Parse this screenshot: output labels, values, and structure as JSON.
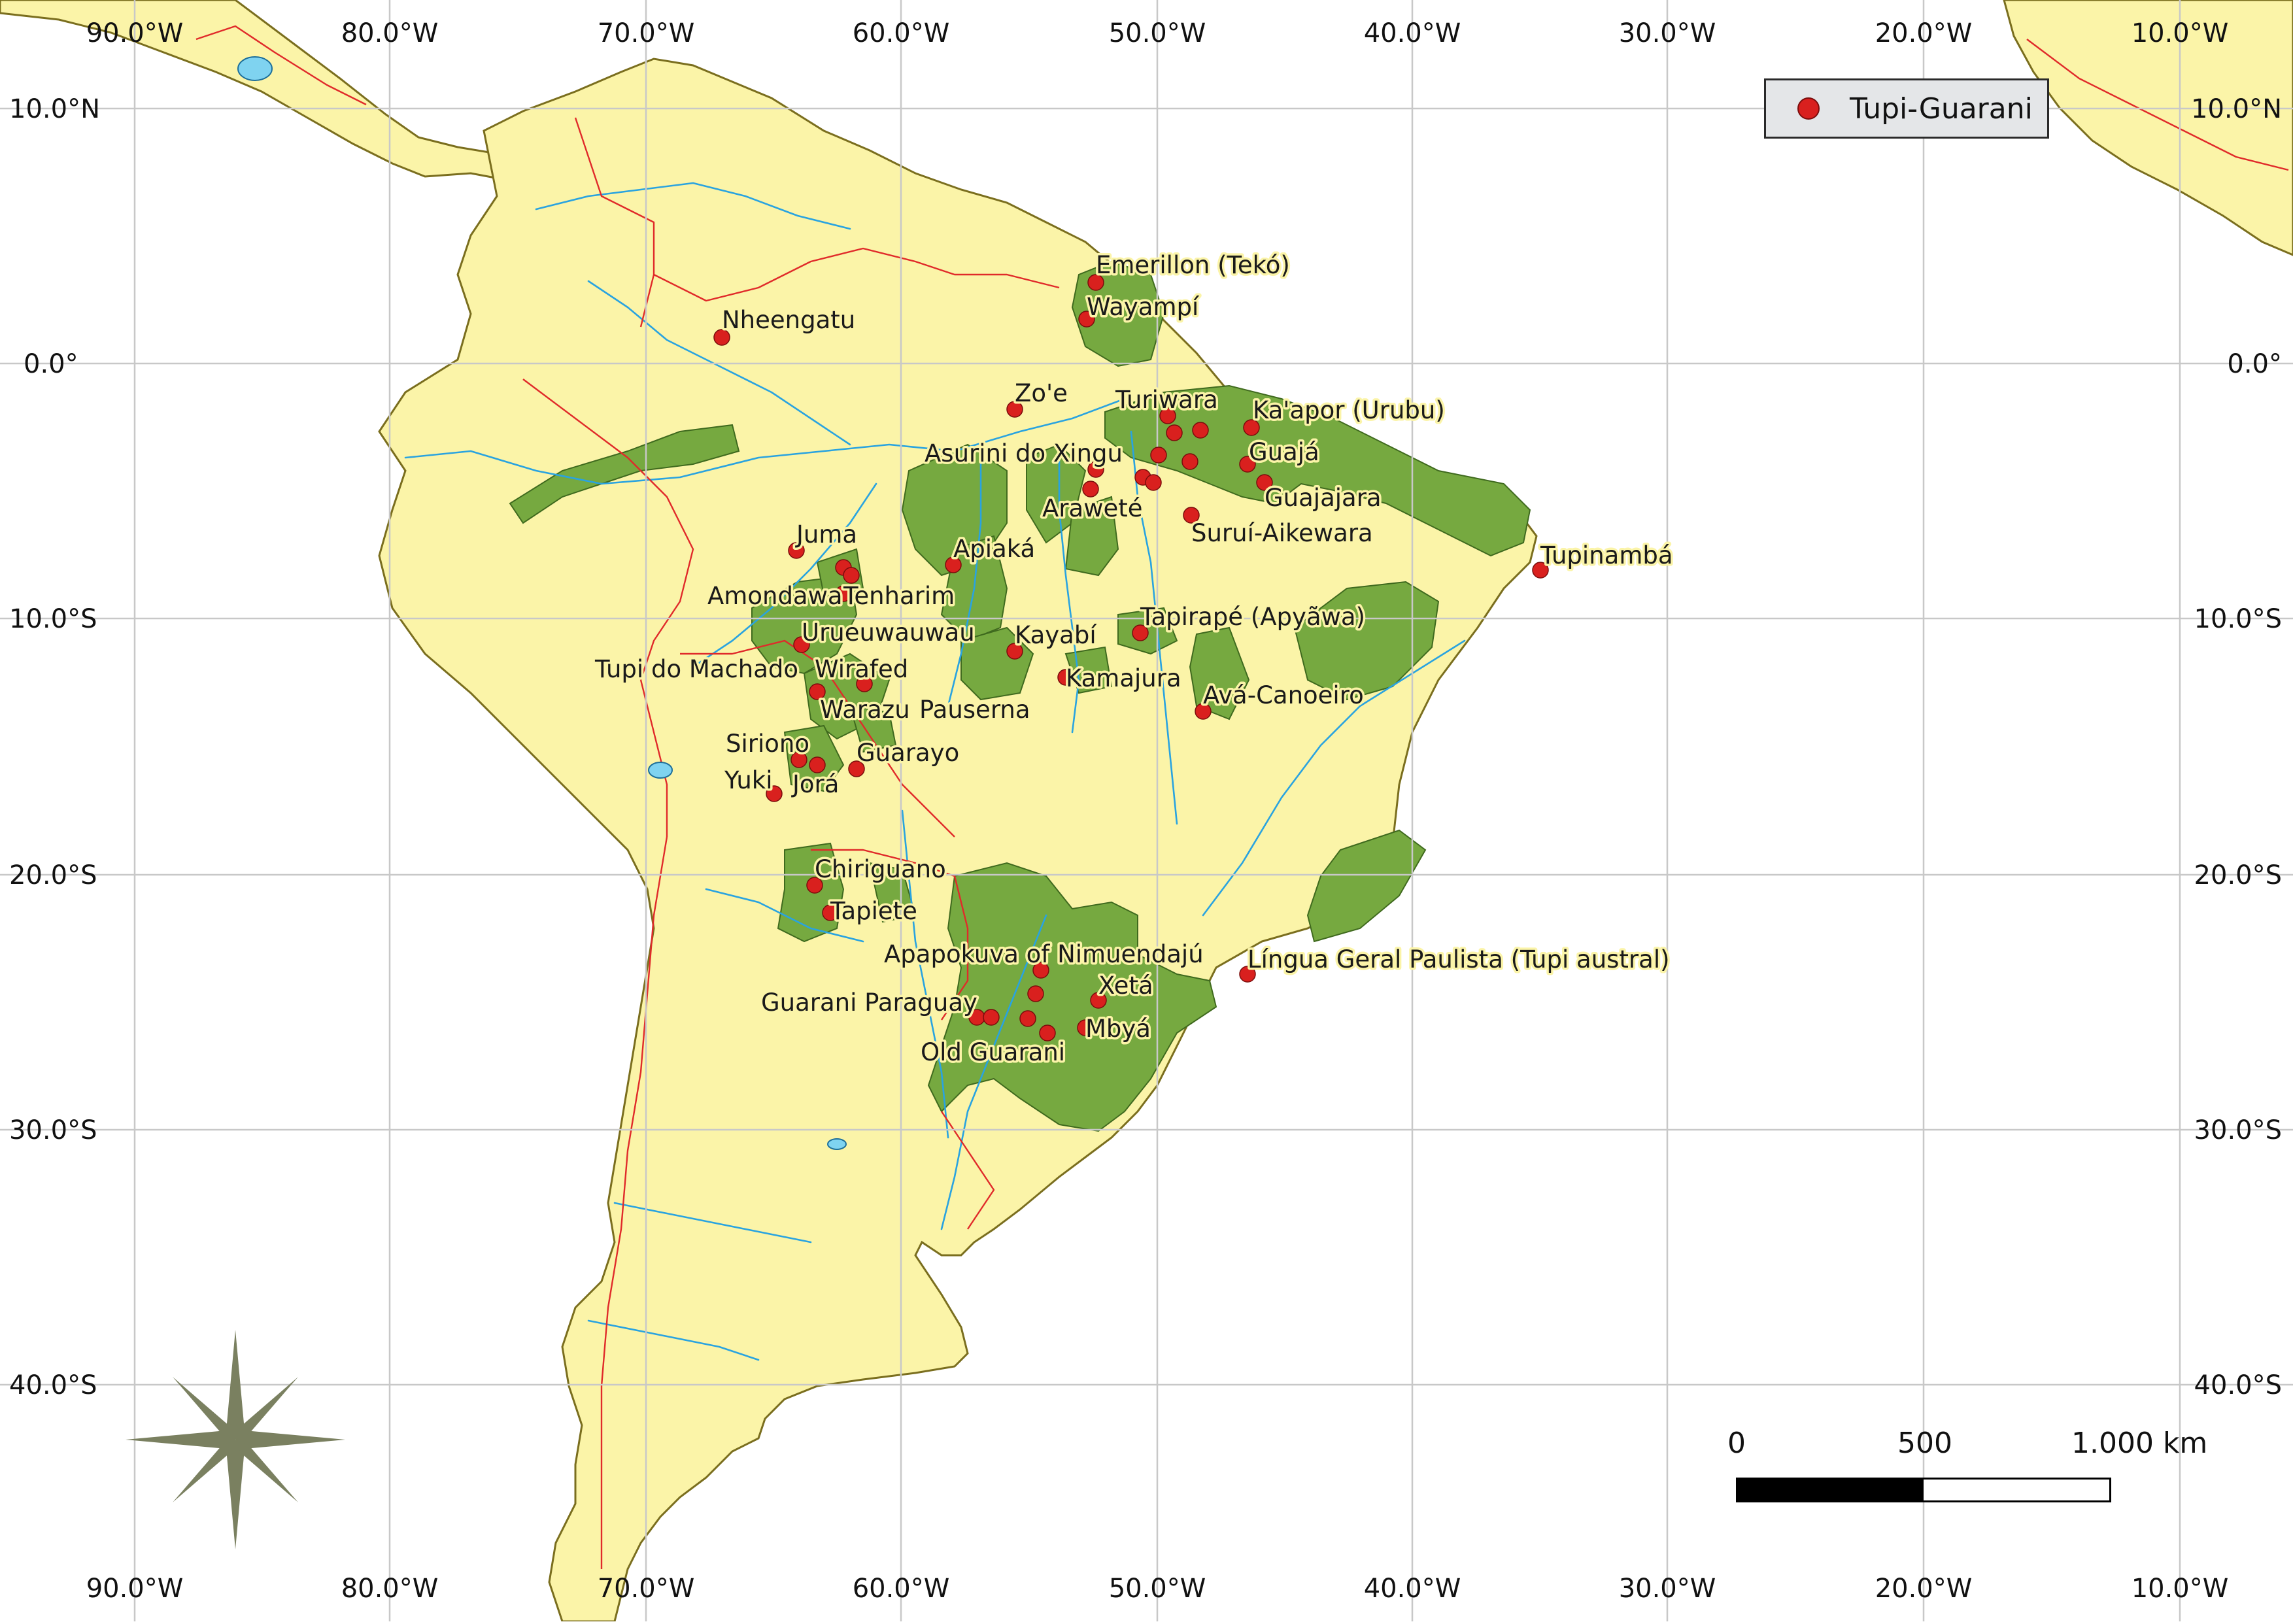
{
  "legend": {
    "label": "Tupi-Guarani",
    "marker_color": "#d9201e"
  },
  "scale_bar": {
    "ticks": [
      "0",
      "500",
      "1.000 km"
    ]
  },
  "colors": {
    "land": "#fbf4a8",
    "tupi_guarani_area": "#76a940",
    "river": "#29a3e0",
    "border": "#e02a2a",
    "compass": "#7a8060"
  },
  "compass_icon": "compass-rose-icon",
  "axes": {
    "top_longitudes": [
      "90.0°W",
      "80.0°W",
      "70.0°W",
      "60.0°W",
      "50.0°W",
      "40.0°W",
      "30.0°W",
      "20.0°W",
      "10.0°W"
    ],
    "bottom_longitudes": [
      "90.0°W",
      "80.0°W",
      "70.0°W",
      "60.0°W",
      "50.0°W",
      "40.0°W",
      "30.0°W",
      "20.0°W",
      "10.0°W"
    ],
    "left_latitudes": [
      "10.0°N",
      "0.0°",
      "10.0°S",
      "20.0°S",
      "30.0°S",
      "40.0°S"
    ],
    "right_latitudes": [
      "10.0°N",
      "0.0°",
      "10.0°S",
      "20.0°S",
      "30.0°S",
      "40.0°S"
    ]
  },
  "languages": [
    "Emerillon (Tekó)",
    "Wayampí",
    "Nheengatu",
    "Zo'e",
    "Turiwara",
    "Ka'apor (Urubu)",
    "Guajá",
    "Asurini do Xingu",
    "Guajajara",
    "Araweté",
    "Suruí-Aikewara",
    "Tupinambá",
    "Juma",
    "Apiaká",
    "Amondawa",
    "Tenharim",
    "Tapirapé (Apyãwa)",
    "Urueuwauwau",
    "Kayabí",
    "Tupi do Machado",
    "Wirafed",
    "Kamajura",
    "Avá-Canoeiro",
    "Warazu",
    "Pauserna",
    "Siriono",
    "Guarayo",
    "Yuki",
    "Jorá",
    "Chiriguano",
    "Tapiete",
    "Apapokuva of Nimuendajú",
    "Língua Geral Paulista (Tupi austral)",
    "Xetá",
    "Guarani Paraguay",
    "Mbyá",
    "Old Guarani"
  ]
}
